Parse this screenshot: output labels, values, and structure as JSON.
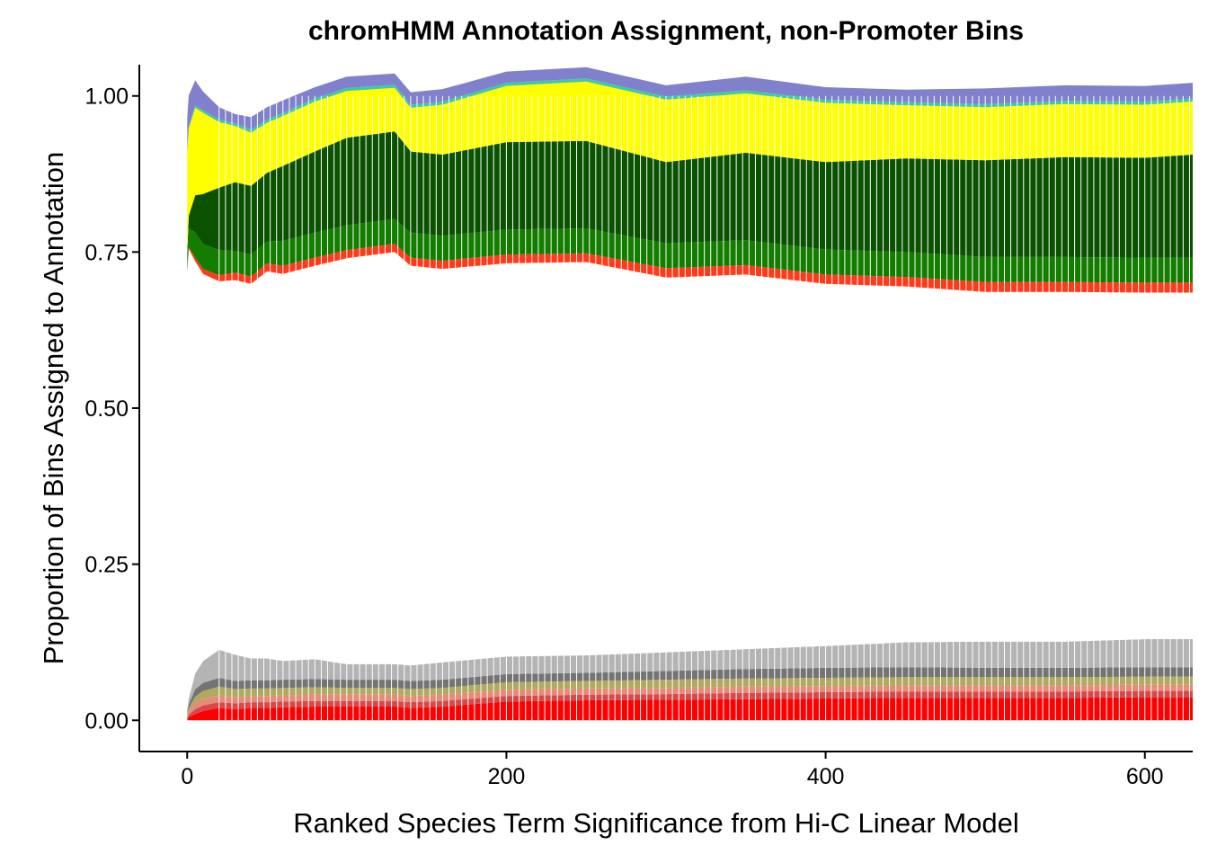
{
  "chart_data": {
    "type": "area",
    "title": "chromHMM Annotation Assignment, non-Promoter Bins",
    "xlabel": "Ranked Species Term Significance from Hi-C Linear Model",
    "ylabel": "Proportion of Bins Assigned to Annotation",
    "xlim": [
      -30,
      630
    ],
    "ylim": [
      -0.05,
      1.05
    ],
    "x_ticks": [
      0,
      200,
      400,
      600
    ],
    "x_tick_labels": [
      "0",
      "200",
      "400",
      "600"
    ],
    "y_ticks": [
      0,
      0.25,
      0.5,
      0.75,
      1
    ],
    "y_tick_labels": [
      "0.00",
      "0.25",
      "0.50",
      "0.75",
      "1.00"
    ],
    "grid": false,
    "legend": "none",
    "x": [
      0,
      1,
      5,
      10,
      20,
      30,
      40,
      50,
      60,
      80,
      100,
      130,
      140,
      160,
      200,
      250,
      300,
      350,
      400,
      450,
      500,
      550,
      600,
      630
    ],
    "series": [
      {
        "color": "#FF0000",
        "values": [
          0.002,
          0.005,
          0.01,
          0.015,
          0.02,
          0.018,
          0.02,
          0.02,
          0.021,
          0.022,
          0.022,
          0.022,
          0.02,
          0.022,
          0.03,
          0.032,
          0.033,
          0.034,
          0.035,
          0.036,
          0.036,
          0.036,
          0.037,
          0.037
        ]
      },
      {
        "color": "#D44A4A",
        "values": [
          0.002,
          0.004,
          0.008,
          0.009,
          0.009,
          0.009,
          0.009,
          0.009,
          0.009,
          0.009,
          0.009,
          0.009,
          0.009,
          0.009,
          0.009,
          0.009,
          0.009,
          0.01,
          0.01,
          0.01,
          0.01,
          0.01,
          0.01,
          0.01
        ]
      },
      {
        "color": "#E88A78",
        "values": [
          0.003,
          0.005,
          0.01,
          0.011,
          0.011,
          0.01,
          0.01,
          0.01,
          0.01,
          0.01,
          0.01,
          0.01,
          0.01,
          0.01,
          0.01,
          0.01,
          0.01,
          0.01,
          0.01,
          0.01,
          0.01,
          0.01,
          0.01,
          0.01
        ]
      },
      {
        "color": "#B0AA60",
        "values": [
          0.003,
          0.005,
          0.01,
          0.012,
          0.014,
          0.013,
          0.012,
          0.012,
          0.012,
          0.012,
          0.011,
          0.011,
          0.011,
          0.011,
          0.012,
          0.012,
          0.013,
          0.013,
          0.013,
          0.013,
          0.013,
          0.013,
          0.013,
          0.013
        ]
      },
      {
        "color": "#747474",
        "values": [
          0.003,
          0.006,
          0.012,
          0.013,
          0.014,
          0.013,
          0.013,
          0.013,
          0.013,
          0.013,
          0.013,
          0.013,
          0.013,
          0.013,
          0.013,
          0.013,
          0.014,
          0.015,
          0.016,
          0.016,
          0.015,
          0.015,
          0.015,
          0.015
        ]
      },
      {
        "color": "#B4B4B4",
        "values": [
          0.005,
          0.01,
          0.025,
          0.035,
          0.045,
          0.042,
          0.035,
          0.035,
          0.03,
          0.032,
          0.025,
          0.025,
          0.025,
          0.028,
          0.028,
          0.028,
          0.03,
          0.032,
          0.035,
          0.04,
          0.042,
          0.042,
          0.045,
          0.045
        ]
      },
      {
        "color": "#FFFFFF",
        "values": [
          0.7,
          0.72,
          0.66,
          0.62,
          0.59,
          0.6,
          0.6,
          0.62,
          0.62,
          0.63,
          0.65,
          0.66,
          0.64,
          0.63,
          0.63,
          0.63,
          0.6,
          0.6,
          0.58,
          0.57,
          0.56,
          0.56,
          0.555,
          0.555
        ]
      },
      {
        "color": "#FF3A1A",
        "values": [
          0.002,
          0.003,
          0.006,
          0.008,
          0.01,
          0.012,
          0.012,
          0.013,
          0.013,
          0.013,
          0.013,
          0.013,
          0.013,
          0.013,
          0.014,
          0.014,
          0.015,
          0.015,
          0.015,
          0.015,
          0.016,
          0.016,
          0.016,
          0.016
        ]
      },
      {
        "color": "#137D00",
        "values": [
          0.02,
          0.03,
          0.04,
          0.04,
          0.04,
          0.035,
          0.035,
          0.035,
          0.04,
          0.04,
          0.04,
          0.04,
          0.04,
          0.04,
          0.04,
          0.04,
          0.04,
          0.04,
          0.04,
          0.04,
          0.04,
          0.04,
          0.04,
          0.04
        ]
      },
      {
        "color": "#0A5200",
        "values": [
          0.01,
          0.02,
          0.06,
          0.08,
          0.1,
          0.11,
          0.11,
          0.11,
          0.12,
          0.13,
          0.14,
          0.14,
          0.13,
          0.13,
          0.14,
          0.14,
          0.13,
          0.14,
          0.14,
          0.15,
          0.155,
          0.16,
          0.16,
          0.165
        ]
      },
      {
        "color": "#FFFF00",
        "values": [
          0.16,
          0.14,
          0.14,
          0.13,
          0.105,
          0.09,
          0.085,
          0.08,
          0.08,
          0.08,
          0.075,
          0.07,
          0.07,
          0.08,
          0.09,
          0.095,
          0.1,
          0.095,
          0.095,
          0.085,
          0.085,
          0.085,
          0.085,
          0.085
        ]
      },
      {
        "color": "#3FC9A8",
        "values": [
          0.002,
          0.003,
          0.004,
          0.004,
          0.004,
          0.004,
          0.005,
          0.005,
          0.005,
          0.005,
          0.005,
          0.005,
          0.005,
          0.005,
          0.005,
          0.005,
          0.005,
          0.005,
          0.005,
          0.005,
          0.005,
          0.005,
          0.005,
          0.005
        ]
      },
      {
        "color": "#8080CC",
        "values": [
          0.053,
          0.05,
          0.04,
          0.03,
          0.02,
          0.015,
          0.02,
          0.02,
          0.02,
          0.018,
          0.018,
          0.018,
          0.02,
          0.02,
          0.018,
          0.018,
          0.018,
          0.022,
          0.02,
          0.02,
          0.025,
          0.025,
          0.025,
          0.025
        ]
      }
    ]
  }
}
